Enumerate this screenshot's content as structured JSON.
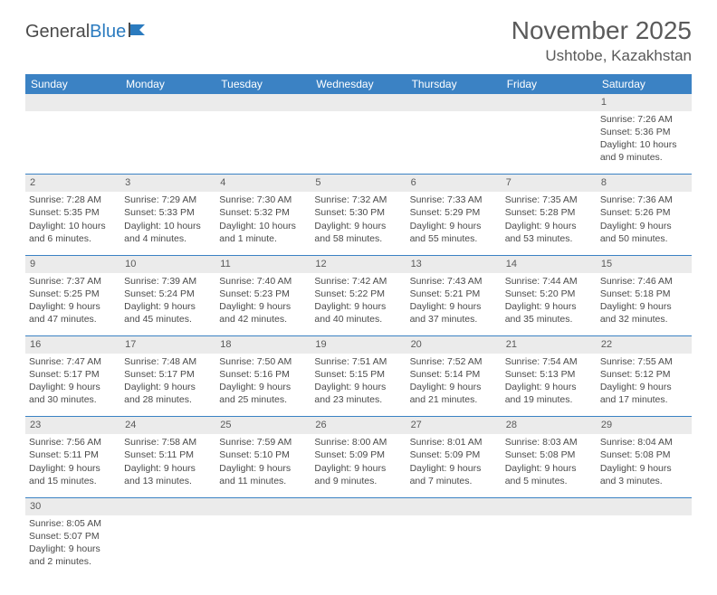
{
  "logo": {
    "part1": "General",
    "part2": "Blue"
  },
  "title": "November 2025",
  "location": "Ushtobe, Kazakhstan",
  "colors": {
    "header_bg": "#3b82c4",
    "header_text": "#ffffff",
    "daynum_bg": "#ebebeb",
    "text": "#4a4a4a",
    "border": "#3b82c4"
  },
  "day_headers": [
    "Sunday",
    "Monday",
    "Tuesday",
    "Wednesday",
    "Thursday",
    "Friday",
    "Saturday"
  ],
  "weeks": [
    {
      "nums": [
        "",
        "",
        "",
        "",
        "",
        "",
        "1"
      ],
      "cells": [
        null,
        null,
        null,
        null,
        null,
        null,
        {
          "sunrise": "Sunrise: 7:26 AM",
          "sunset": "Sunset: 5:36 PM",
          "day1": "Daylight: 10 hours",
          "day2": "and 9 minutes."
        }
      ]
    },
    {
      "nums": [
        "2",
        "3",
        "4",
        "5",
        "6",
        "7",
        "8"
      ],
      "cells": [
        {
          "sunrise": "Sunrise: 7:28 AM",
          "sunset": "Sunset: 5:35 PM",
          "day1": "Daylight: 10 hours",
          "day2": "and 6 minutes."
        },
        {
          "sunrise": "Sunrise: 7:29 AM",
          "sunset": "Sunset: 5:33 PM",
          "day1": "Daylight: 10 hours",
          "day2": "and 4 minutes."
        },
        {
          "sunrise": "Sunrise: 7:30 AM",
          "sunset": "Sunset: 5:32 PM",
          "day1": "Daylight: 10 hours",
          "day2": "and 1 minute."
        },
        {
          "sunrise": "Sunrise: 7:32 AM",
          "sunset": "Sunset: 5:30 PM",
          "day1": "Daylight: 9 hours",
          "day2": "and 58 minutes."
        },
        {
          "sunrise": "Sunrise: 7:33 AM",
          "sunset": "Sunset: 5:29 PM",
          "day1": "Daylight: 9 hours",
          "day2": "and 55 minutes."
        },
        {
          "sunrise": "Sunrise: 7:35 AM",
          "sunset": "Sunset: 5:28 PM",
          "day1": "Daylight: 9 hours",
          "day2": "and 53 minutes."
        },
        {
          "sunrise": "Sunrise: 7:36 AM",
          "sunset": "Sunset: 5:26 PM",
          "day1": "Daylight: 9 hours",
          "day2": "and 50 minutes."
        }
      ]
    },
    {
      "nums": [
        "9",
        "10",
        "11",
        "12",
        "13",
        "14",
        "15"
      ],
      "cells": [
        {
          "sunrise": "Sunrise: 7:37 AM",
          "sunset": "Sunset: 5:25 PM",
          "day1": "Daylight: 9 hours",
          "day2": "and 47 minutes."
        },
        {
          "sunrise": "Sunrise: 7:39 AM",
          "sunset": "Sunset: 5:24 PM",
          "day1": "Daylight: 9 hours",
          "day2": "and 45 minutes."
        },
        {
          "sunrise": "Sunrise: 7:40 AM",
          "sunset": "Sunset: 5:23 PM",
          "day1": "Daylight: 9 hours",
          "day2": "and 42 minutes."
        },
        {
          "sunrise": "Sunrise: 7:42 AM",
          "sunset": "Sunset: 5:22 PM",
          "day1": "Daylight: 9 hours",
          "day2": "and 40 minutes."
        },
        {
          "sunrise": "Sunrise: 7:43 AM",
          "sunset": "Sunset: 5:21 PM",
          "day1": "Daylight: 9 hours",
          "day2": "and 37 minutes."
        },
        {
          "sunrise": "Sunrise: 7:44 AM",
          "sunset": "Sunset: 5:20 PM",
          "day1": "Daylight: 9 hours",
          "day2": "and 35 minutes."
        },
        {
          "sunrise": "Sunrise: 7:46 AM",
          "sunset": "Sunset: 5:18 PM",
          "day1": "Daylight: 9 hours",
          "day2": "and 32 minutes."
        }
      ]
    },
    {
      "nums": [
        "16",
        "17",
        "18",
        "19",
        "20",
        "21",
        "22"
      ],
      "cells": [
        {
          "sunrise": "Sunrise: 7:47 AM",
          "sunset": "Sunset: 5:17 PM",
          "day1": "Daylight: 9 hours",
          "day2": "and 30 minutes."
        },
        {
          "sunrise": "Sunrise: 7:48 AM",
          "sunset": "Sunset: 5:17 PM",
          "day1": "Daylight: 9 hours",
          "day2": "and 28 minutes."
        },
        {
          "sunrise": "Sunrise: 7:50 AM",
          "sunset": "Sunset: 5:16 PM",
          "day1": "Daylight: 9 hours",
          "day2": "and 25 minutes."
        },
        {
          "sunrise": "Sunrise: 7:51 AM",
          "sunset": "Sunset: 5:15 PM",
          "day1": "Daylight: 9 hours",
          "day2": "and 23 minutes."
        },
        {
          "sunrise": "Sunrise: 7:52 AM",
          "sunset": "Sunset: 5:14 PM",
          "day1": "Daylight: 9 hours",
          "day2": "and 21 minutes."
        },
        {
          "sunrise": "Sunrise: 7:54 AM",
          "sunset": "Sunset: 5:13 PM",
          "day1": "Daylight: 9 hours",
          "day2": "and 19 minutes."
        },
        {
          "sunrise": "Sunrise: 7:55 AM",
          "sunset": "Sunset: 5:12 PM",
          "day1": "Daylight: 9 hours",
          "day2": "and 17 minutes."
        }
      ]
    },
    {
      "nums": [
        "23",
        "24",
        "25",
        "26",
        "27",
        "28",
        "29"
      ],
      "cells": [
        {
          "sunrise": "Sunrise: 7:56 AM",
          "sunset": "Sunset: 5:11 PM",
          "day1": "Daylight: 9 hours",
          "day2": "and 15 minutes."
        },
        {
          "sunrise": "Sunrise: 7:58 AM",
          "sunset": "Sunset: 5:11 PM",
          "day1": "Daylight: 9 hours",
          "day2": "and 13 minutes."
        },
        {
          "sunrise": "Sunrise: 7:59 AM",
          "sunset": "Sunset: 5:10 PM",
          "day1": "Daylight: 9 hours",
          "day2": "and 11 minutes."
        },
        {
          "sunrise": "Sunrise: 8:00 AM",
          "sunset": "Sunset: 5:09 PM",
          "day1": "Daylight: 9 hours",
          "day2": "and 9 minutes."
        },
        {
          "sunrise": "Sunrise: 8:01 AM",
          "sunset": "Sunset: 5:09 PM",
          "day1": "Daylight: 9 hours",
          "day2": "and 7 minutes."
        },
        {
          "sunrise": "Sunrise: 8:03 AM",
          "sunset": "Sunset: 5:08 PM",
          "day1": "Daylight: 9 hours",
          "day2": "and 5 minutes."
        },
        {
          "sunrise": "Sunrise: 8:04 AM",
          "sunset": "Sunset: 5:08 PM",
          "day1": "Daylight: 9 hours",
          "day2": "and 3 minutes."
        }
      ]
    },
    {
      "nums": [
        "30",
        "",
        "",
        "",
        "",
        "",
        ""
      ],
      "cells": [
        {
          "sunrise": "Sunrise: 8:05 AM",
          "sunset": "Sunset: 5:07 PM",
          "day1": "Daylight: 9 hours",
          "day2": "and 2 minutes."
        },
        null,
        null,
        null,
        null,
        null,
        null
      ]
    }
  ]
}
